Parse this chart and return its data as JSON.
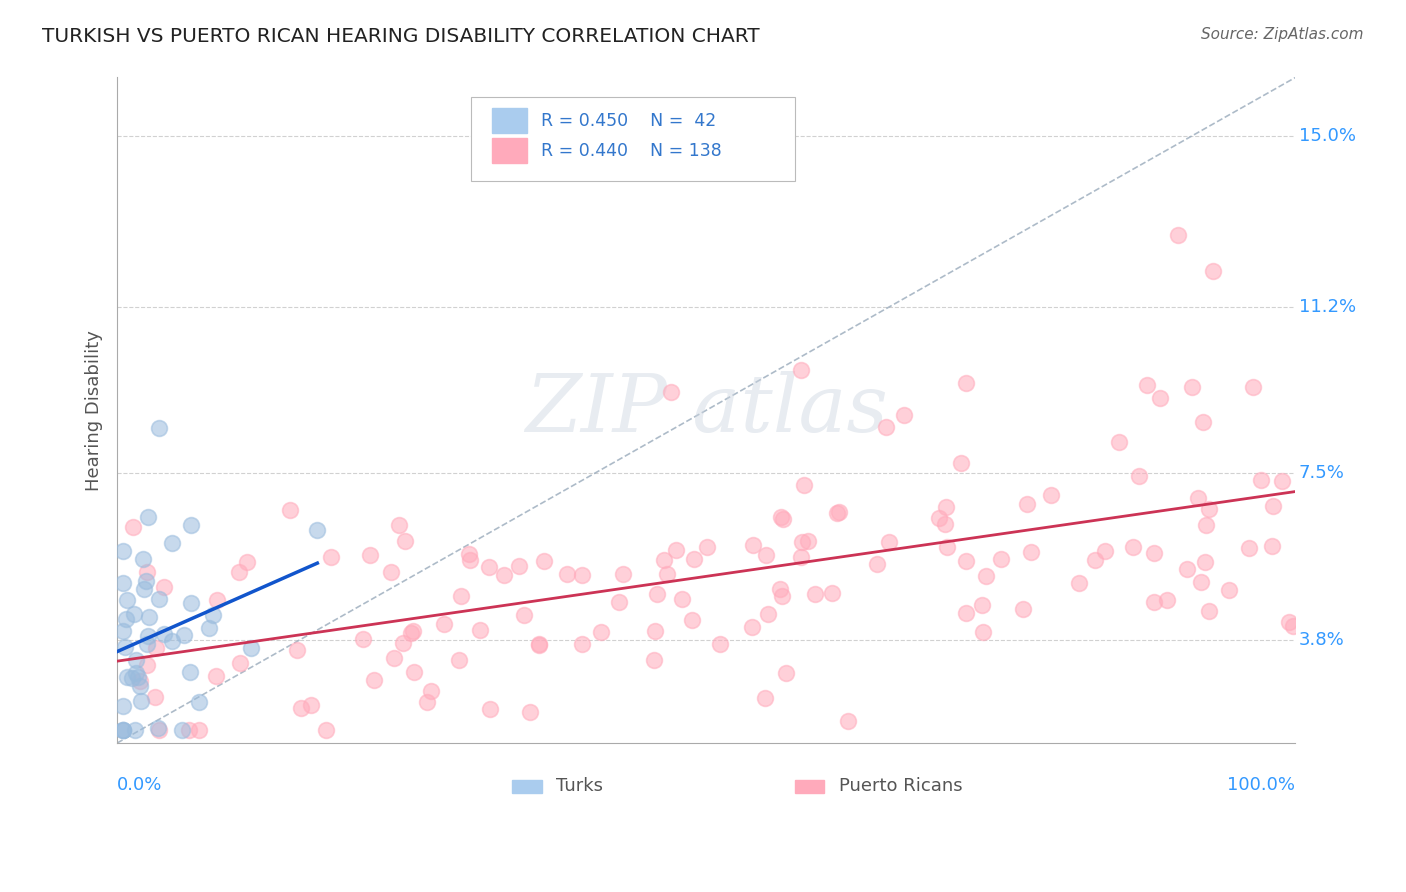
{
  "title": "TURKISH VS PUERTO RICAN HEARING DISABILITY CORRELATION CHART",
  "source": "Source: ZipAtlas.com",
  "ylabel": "Hearing Disability",
  "ytick_vals": [
    0.038,
    0.075,
    0.112,
    0.15
  ],
  "ytick_labels": [
    "3.8%",
    "7.5%",
    "11.2%",
    "15.0%"
  ],
  "xmin": 0.0,
  "xmax": 1.0,
  "ymin": 0.015,
  "ymax": 0.163,
  "turk_color": "#99bbdd",
  "turk_edge_color": "#99bbdd",
  "puerto_color": "#ffaabb",
  "puerto_edge_color": "#ffaabb",
  "line_turk_color": "#1155cc",
  "line_puerto_color": "#cc3355",
  "diag_color": "#99aabb",
  "grid_color": "#cccccc",
  "title_color": "#222222",
  "bg_color": "#ffffff",
  "legend_R1": "R = 0.450",
  "legend_N1": "N =  42",
  "legend_R2": "R = 0.440",
  "legend_N2": "N = 138",
  "legend_label1": "Turks",
  "legend_label2": "Puerto Ricans",
  "watermark_text": "ZIP atlas",
  "source_text": "Source: ZipAtlas.com",
  "scatter_size": 130,
  "scatter_alpha": 0.55,
  "scatter_lw": 1.2
}
